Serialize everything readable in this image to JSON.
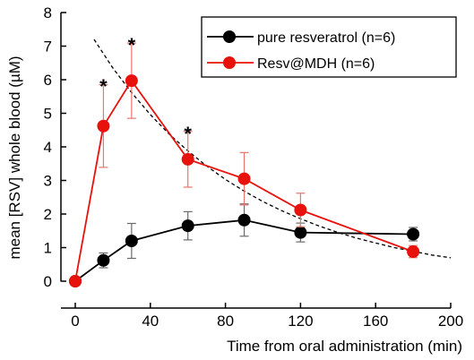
{
  "chart_data": {
    "type": "line",
    "title": "",
    "xlabel": "Time from oral administration (min)",
    "ylabel": "mean [RSV] whole blood (µM)",
    "xlim": [
      0,
      200
    ],
    "ylim": [
      0,
      8
    ],
    "x_ticks": [
      0,
      40,
      80,
      120,
      160,
      200
    ],
    "y_ticks": [
      0,
      1,
      2,
      3,
      4,
      5,
      6,
      7,
      8
    ],
    "grid": false,
    "legend_position": "top-right",
    "series": [
      {
        "name": "pure resveratrol (n=6)",
        "color": "#000000",
        "x": [
          0,
          15,
          30,
          60,
          90,
          120,
          180
        ],
        "values": [
          0,
          0.62,
          1.2,
          1.65,
          1.82,
          1.45,
          1.4
        ],
        "error": [
          0,
          0.22,
          0.52,
          0.42,
          0.48,
          0.28,
          0.2
        ]
      },
      {
        "name": "Resv@MDH (n=6)",
        "color": "#e8120c",
        "x": [
          0,
          15,
          30,
          60,
          90,
          120,
          180
        ],
        "values": [
          0,
          4.62,
          5.97,
          3.63,
          3.05,
          2.12,
          0.88
        ],
        "error": [
          0,
          1.23,
          1.12,
          0.83,
          0.78,
          0.5,
          0.18
        ]
      }
    ],
    "fit_curve": {
      "style": "dashed",
      "color": "#000000",
      "x": [
        10,
        20,
        30,
        40,
        50,
        60,
        70,
        80,
        90,
        100,
        110,
        120,
        130,
        140,
        150,
        160,
        170,
        180,
        190,
        200
      ],
      "values": [
        7.2,
        6.35,
        5.62,
        4.96,
        4.38,
        3.88,
        3.43,
        3.03,
        2.68,
        2.37,
        2.1,
        1.86,
        1.64,
        1.45,
        1.28,
        1.14,
        1.0,
        0.89,
        0.78,
        0.7
      ]
    },
    "annotations": [
      {
        "text": "*",
        "x": 15,
        "y": 5.98
      },
      {
        "text": "*",
        "x": 30,
        "y": 7.2
      },
      {
        "text": "*",
        "x": 60,
        "y": 4.56
      }
    ]
  }
}
